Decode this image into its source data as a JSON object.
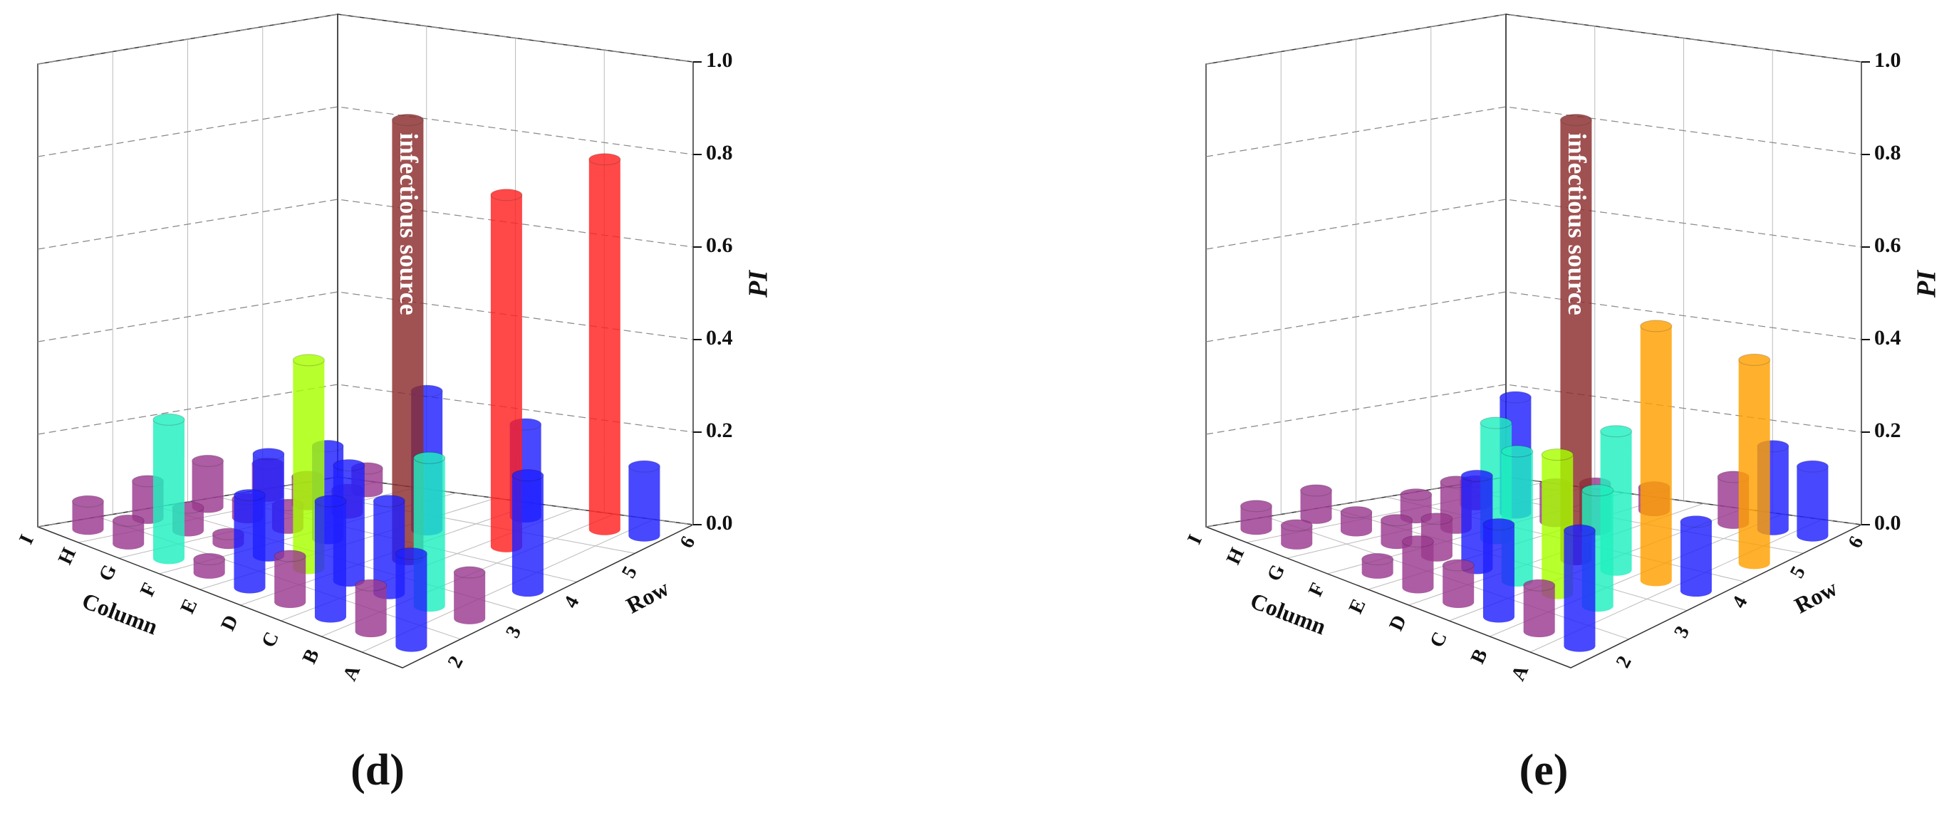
{
  "chart_data": [
    {
      "type": "bar3d",
      "label": "(d)",
      "x_label": "Column",
      "y_label": "Row",
      "z_label": "PI",
      "categories": [
        "A",
        "B",
        "C",
        "D",
        "E",
        "F",
        "G",
        "H",
        "I"
      ],
      "rows": [
        2,
        3,
        4,
        5,
        6
      ],
      "zlim": [
        0,
        1
      ],
      "zticks": [
        {
          "value": 0,
          "label": "0.0"
        },
        {
          "value": 0.2,
          "label": "0.2"
        },
        {
          "value": 0.4,
          "label": "0.4"
        },
        {
          "value": 0.6,
          "label": "0.6"
        },
        {
          "value": 0.8,
          "label": "0.8"
        },
        {
          "value": 1,
          "label": "1.0"
        }
      ],
      "annotation": {
        "text": "infectious source",
        "column": "D",
        "row": 4
      },
      "bars": [
        {
          "column": "D",
          "row": 4,
          "value": 0.95,
          "color": "#8b2c2c"
        },
        {
          "column": "C",
          "row": 5,
          "value": 0.76,
          "color": "#ff2020"
        },
        {
          "column": "B",
          "row": 6,
          "value": 0.8,
          "color": "#ff2020"
        },
        {
          "column": "E",
          "row": 3,
          "value": 0.45,
          "color": "#a8ff00"
        },
        {
          "column": "G",
          "row": 2,
          "value": 0.3,
          "color": "#20f0c0"
        },
        {
          "column": "B",
          "row": 3,
          "value": 0.32,
          "color": "#20f0c0"
        },
        {
          "column": "A",
          "row": 2,
          "value": 0.2,
          "color": "#2020ff"
        },
        {
          "column": "C",
          "row": 2,
          "value": 0.25,
          "color": "#2020ff"
        },
        {
          "column": "E",
          "row": 2,
          "value": 0.2,
          "color": "#2020ff"
        },
        {
          "column": "F",
          "row": 3,
          "value": 0.22,
          "color": "#2020ff"
        },
        {
          "column": "D",
          "row": 3,
          "value": 0.25,
          "color": "#2020ff"
        },
        {
          "column": "A",
          "row": 4,
          "value": 0.25,
          "color": "#2020ff"
        },
        {
          "column": "E",
          "row": 5,
          "value": 0.3,
          "color": "#2020ff"
        },
        {
          "column": "D",
          "row": 6,
          "value": 0.2,
          "color": "#2020ff"
        },
        {
          "column": "A",
          "row": 6,
          "value": 0.15,
          "color": "#2020ff"
        },
        {
          "column": "F",
          "row": 4,
          "value": 0.2,
          "color": "#2020ff"
        },
        {
          "column": "C",
          "row": 3,
          "value": 0.2,
          "color": "#2020ff"
        },
        {
          "column": "B",
          "row": 2,
          "value": 0.1,
          "color": "#9b3a8f"
        },
        {
          "column": "D",
          "row": 2,
          "value": 0.1,
          "color": "#9b3a8f"
        },
        {
          "column": "F",
          "row": 2,
          "value": 0.03,
          "color": "#9b3a8f"
        },
        {
          "column": "H",
          "row": 2,
          "value": 0.05,
          "color": "#9b3a8f"
        },
        {
          "column": "I",
          "row": 2,
          "value": 0.06,
          "color": "#9b3a8f"
        },
        {
          "column": "G",
          "row": 3,
          "value": 0.02,
          "color": "#9b3a8f"
        },
        {
          "column": "H",
          "row": 3,
          "value": 0.05,
          "color": "#9b3a8f"
        },
        {
          "column": "I",
          "row": 3,
          "value": 0.08,
          "color": "#9b3a8f"
        },
        {
          "column": "G",
          "row": 4,
          "value": 0.05,
          "color": "#9b3a8f"
        },
        {
          "column": "H",
          "row": 4,
          "value": 0.04,
          "color": "#9b3a8f"
        },
        {
          "column": "I",
          "row": 4,
          "value": 0.1,
          "color": "#9b3a8f"
        },
        {
          "column": "G",
          "row": 5,
          "value": 0.05,
          "color": "#9b3a8f"
        },
        {
          "column": "H",
          "row": 5,
          "value": 0.06,
          "color": "#9b3a8f"
        },
        {
          "column": "I",
          "row": 5,
          "value": 0.07,
          "color": "#9b3a8f"
        },
        {
          "column": "A",
          "row": 3,
          "value": 0.1,
          "color": "#9b3a8f"
        },
        {
          "column": "H",
          "row": 6,
          "value": 0.05,
          "color": "#9b3a8f"
        }
      ]
    },
    {
      "type": "bar3d",
      "label": "(e)",
      "x_label": "Column",
      "y_label": "Row",
      "z_label": "PI",
      "categories": [
        "A",
        "B",
        "C",
        "D",
        "E",
        "F",
        "G",
        "H",
        "I"
      ],
      "rows": [
        2,
        3,
        4,
        5,
        6
      ],
      "zlim": [
        0,
        1
      ],
      "zticks": [
        {
          "value": 0,
          "label": "0.0"
        },
        {
          "value": 0.2,
          "label": "0.2"
        },
        {
          "value": 0.4,
          "label": "0.4"
        },
        {
          "value": 0.6,
          "label": "0.6"
        },
        {
          "value": 0.8,
          "label": "0.8"
        },
        {
          "value": 1,
          "label": "1.0"
        }
      ],
      "annotation": {
        "text": "infectious source",
        "column": "D",
        "row": 4
      },
      "bars": [
        {
          "column": "D",
          "row": 4,
          "value": 0.95,
          "color": "#8b2c2c"
        },
        {
          "column": "B",
          "row": 4,
          "value": 0.55,
          "color": "#ffa000"
        },
        {
          "column": "A",
          "row": 5,
          "value": 0.44,
          "color": "#ffa000"
        },
        {
          "column": "C",
          "row": 3,
          "value": 0.3,
          "color": "#a8ff00"
        },
        {
          "column": "F",
          "row": 4,
          "value": 0.25,
          "color": "#20f0c0"
        },
        {
          "column": "D",
          "row": 3,
          "value": 0.28,
          "color": "#20f0c0"
        },
        {
          "column": "C",
          "row": 4,
          "value": 0.3,
          "color": "#20f0c0"
        },
        {
          "column": "B",
          "row": 3,
          "value": 0.25,
          "color": "#20f0c0"
        },
        {
          "column": "A",
          "row": 2,
          "value": 0.25,
          "color": "#2020ff"
        },
        {
          "column": "C",
          "row": 2,
          "value": 0.2,
          "color": "#2020ff"
        },
        {
          "column": "E",
          "row": 3,
          "value": 0.2,
          "color": "#2020ff"
        },
        {
          "column": "G",
          "row": 5,
          "value": 0.25,
          "color": "#2020ff"
        },
        {
          "column": "A",
          "row": 6,
          "value": 0.15,
          "color": "#2020ff"
        },
        {
          "column": "B",
          "row": 6,
          "value": 0.18,
          "color": "#2020ff"
        },
        {
          "column": "A",
          "row": 4,
          "value": 0.15,
          "color": "#2020ff"
        },
        {
          "column": "B",
          "row": 2,
          "value": 0.1,
          "color": "#9b3a8f"
        },
        {
          "column": "D",
          "row": 2,
          "value": 0.08,
          "color": "#9b3a8f"
        },
        {
          "column": "F",
          "row": 2,
          "value": 0.03,
          "color": "#9b3a8f"
        },
        {
          "column": "H",
          "row": 2,
          "value": 0.04,
          "color": "#9b3a8f"
        },
        {
          "column": "I",
          "row": 2,
          "value": 0.05,
          "color": "#9b3a8f"
        },
        {
          "column": "E",
          "row": 2,
          "value": 0.1,
          "color": "#9b3a8f"
        },
        {
          "column": "G",
          "row": 3,
          "value": 0.05,
          "color": "#9b3a8f"
        },
        {
          "column": "H",
          "row": 3,
          "value": 0.04,
          "color": "#9b3a8f"
        },
        {
          "column": "I",
          "row": 3,
          "value": 0.06,
          "color": "#9b3a8f"
        },
        {
          "column": "G",
          "row": 4,
          "value": 0.1,
          "color": "#9b3a8f"
        },
        {
          "column": "H",
          "row": 4,
          "value": 0.05,
          "color": "#9b3a8f"
        },
        {
          "column": "E",
          "row": 5,
          "value": 0.1,
          "color": "#9b3a8f"
        },
        {
          "column": "F",
          "row": 5,
          "value": 0.08,
          "color": "#9b3a8f"
        },
        {
          "column": "H",
          "row": 5,
          "value": 0.05,
          "color": "#9b3a8f"
        },
        {
          "column": "C",
          "row": 6,
          "value": 0.1,
          "color": "#9b3a8f"
        },
        {
          "column": "E",
          "row": 6,
          "value": 0.05,
          "color": "#9b3a8f"
        },
        {
          "column": "F",
          "row": 3,
          "value": 0.08,
          "color": "#9b3a8f"
        }
      ]
    }
  ]
}
